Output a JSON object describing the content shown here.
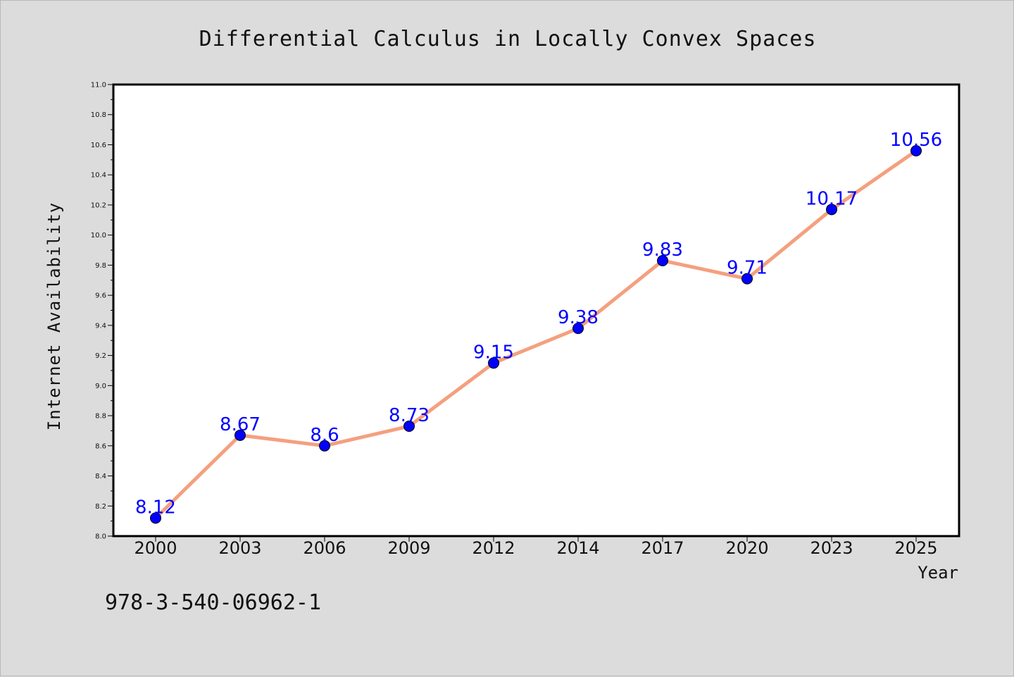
{
  "chart_data": {
    "type": "line",
    "title": "Differential Calculus in Locally Convex Spaces",
    "xlabel": "Year",
    "ylabel": "Internet Availability",
    "categories": [
      "2000",
      "2003",
      "2006",
      "2009",
      "2012",
      "2014",
      "2017",
      "2020",
      "2023",
      "2025"
    ],
    "series": [
      {
        "values": [
          8.12,
          8.67,
          8.6,
          8.73,
          9.15,
          9.38,
          9.83,
          9.71,
          10.17,
          10.56
        ]
      }
    ],
    "data_labels": [
      "8.12",
      "8.67",
      "8.6",
      "8.73",
      "9.15",
      "9.38",
      "9.83",
      "9.71",
      "10.17",
      "10.56"
    ],
    "ylim": [
      8.0,
      11.0
    ],
    "yticks": [
      "8.0",
      "8.2",
      "8.4",
      "8.6",
      "8.8",
      "9.0",
      "9.2",
      "9.4",
      "9.6",
      "9.8",
      "10.0",
      "10.2",
      "10.4",
      "10.6",
      "10.8",
      "11.0"
    ],
    "grid": false,
    "legend": "none",
    "colors": {
      "line": "#f4a07f",
      "marker_fill": "#0000ff",
      "marker_edge": "#000000",
      "data_label": "#0000ff",
      "background": "#dcdcdc",
      "plot_background": "#ffffff"
    }
  },
  "annotation": "978-3-540-06962-1"
}
